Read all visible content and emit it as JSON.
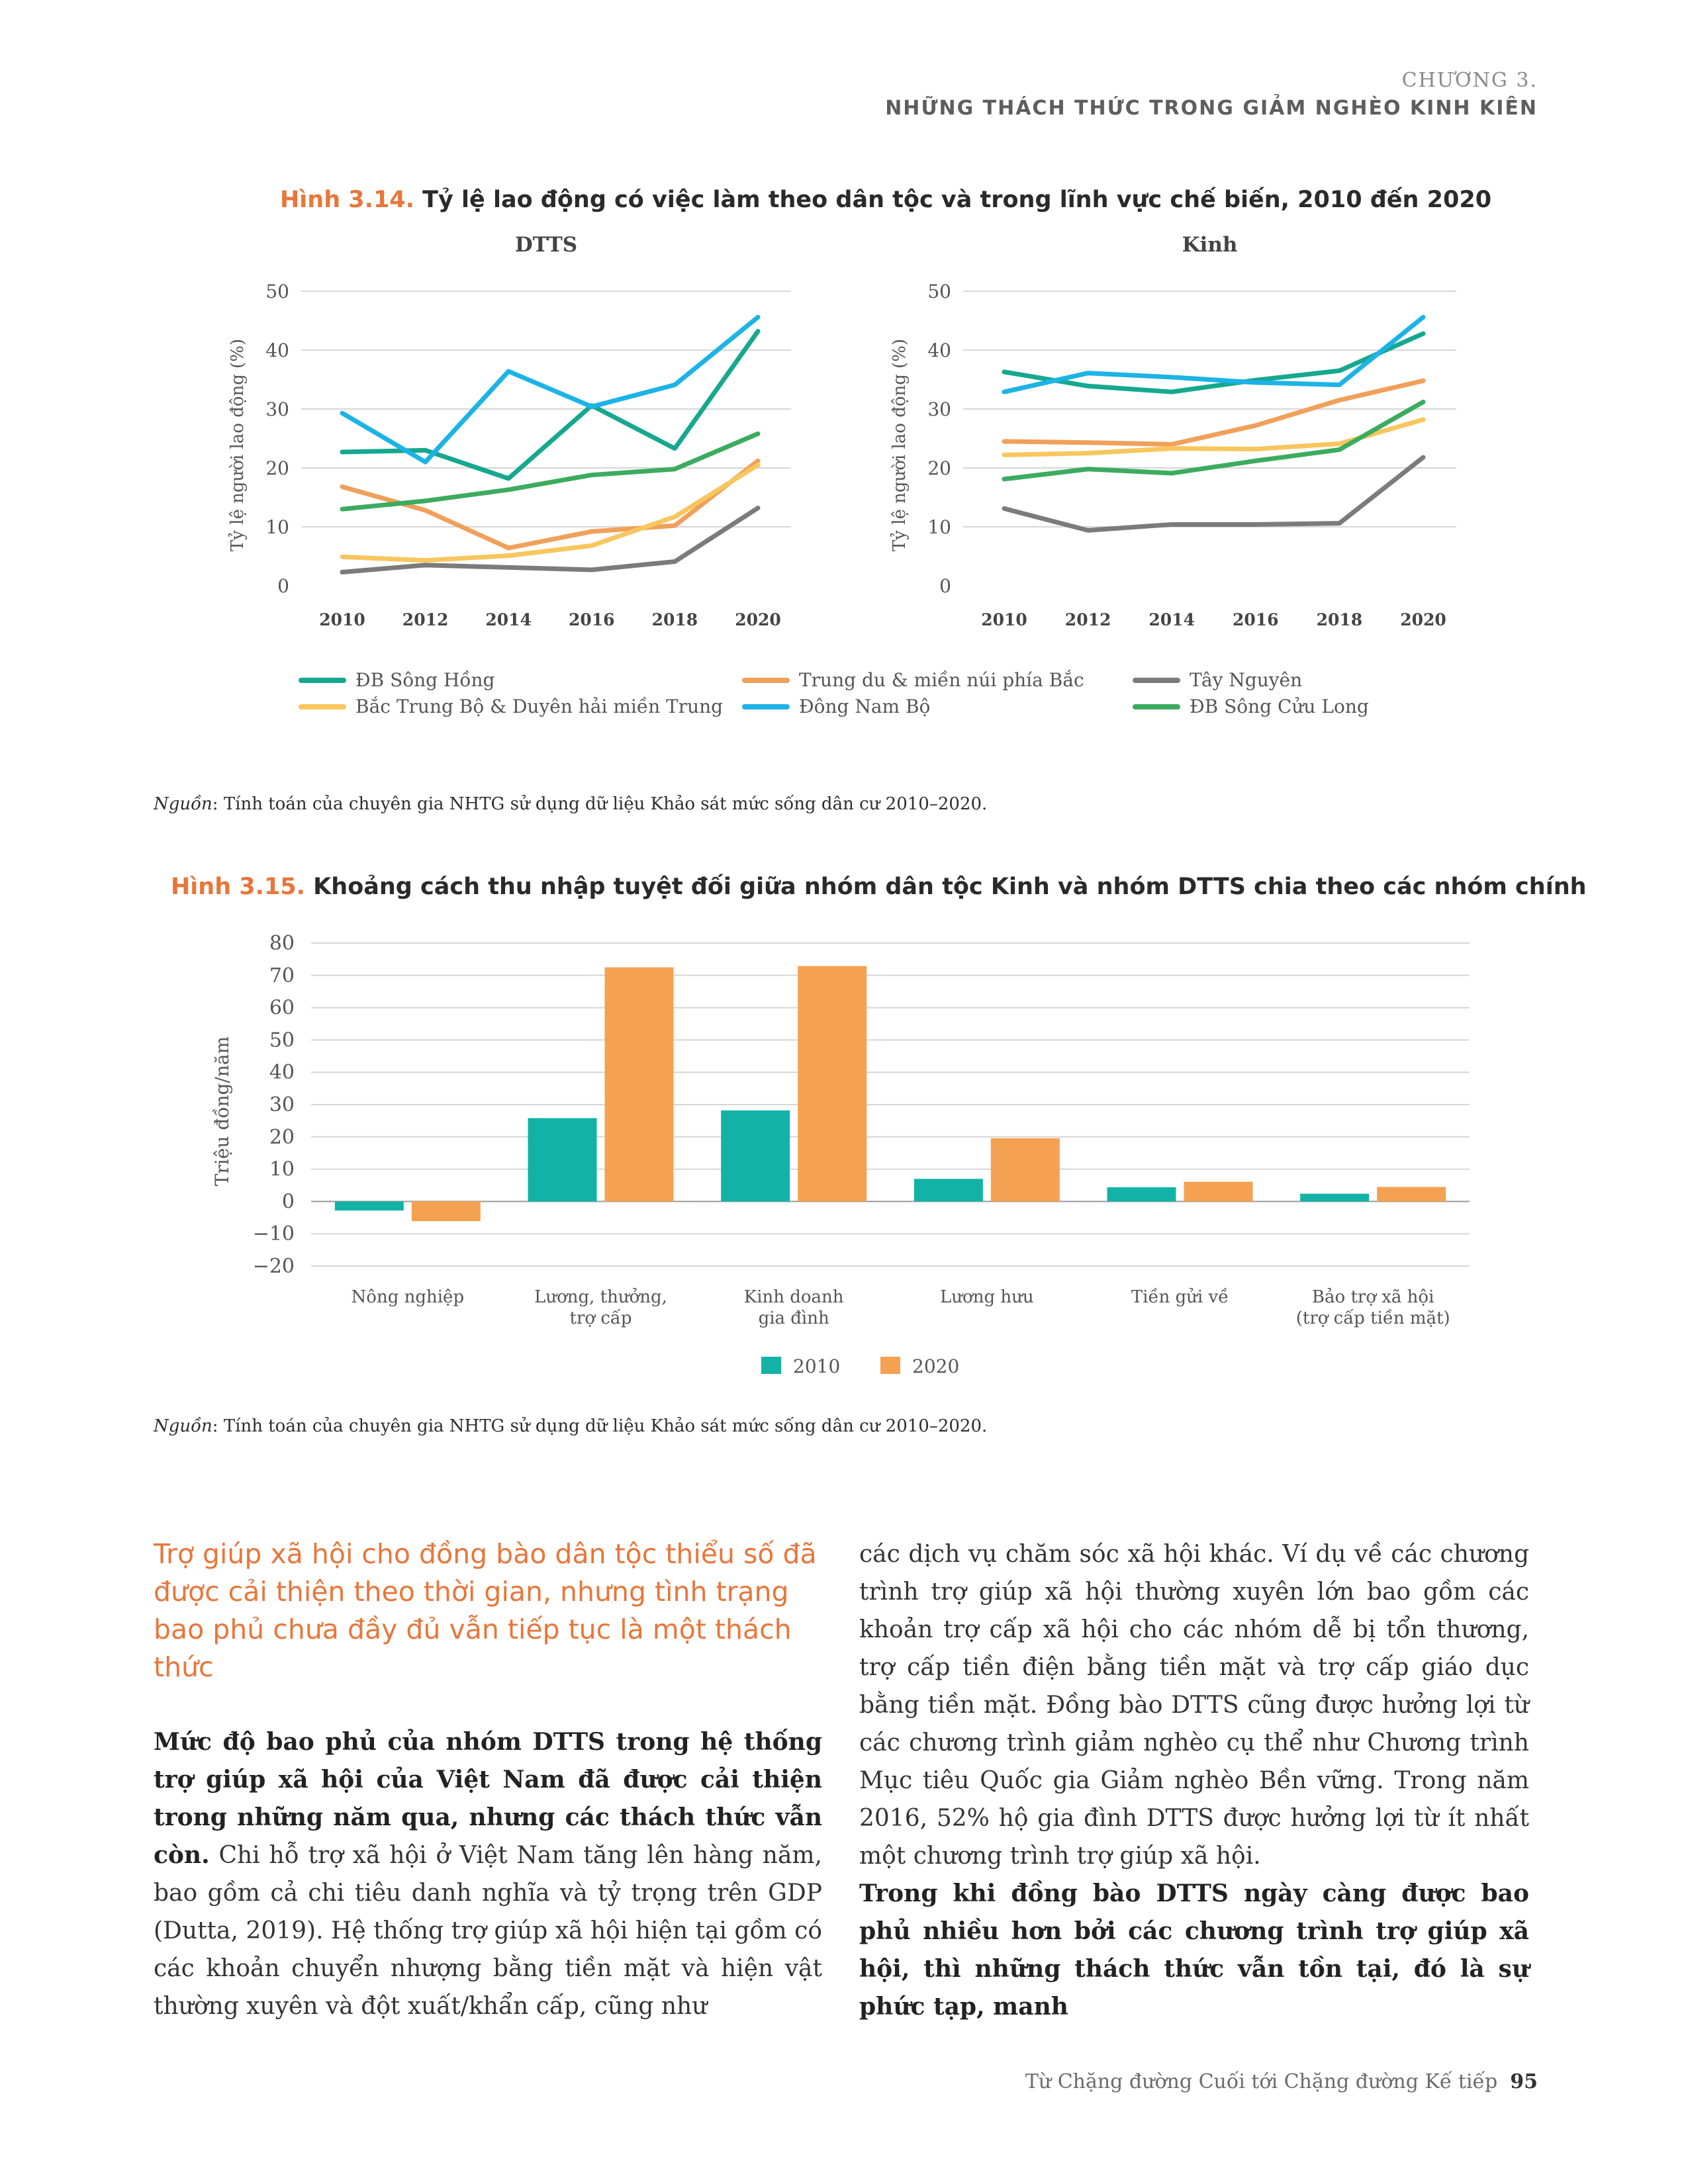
{
  "header": {
    "chapter": "CHƯƠNG 3.",
    "chapter_title": "NHỮNG THÁCH THỨC TRONG GIẢM NGHÈO KINH KIÊN"
  },
  "fig314": {
    "number": "Hình 3.14.",
    "title": "Tỷ lệ lao động có việc làm  theo dân tộc và trong lĩnh vực chế biến, 2010 đến 2020",
    "source_label": "Nguồn",
    "source": ": Tính toán của chuyên gia NHTG sử dụng dữ liệu Khảo sát mức sống dân cư 2010–2020."
  },
  "fig315": {
    "number": "Hình 3.15.",
    "title": "Khoảng cách thu nhập tuyệt đối giữa nhóm dân tộc Kinh và nhóm DTTS chia theo các nhóm chính",
    "source_label": "Nguồn",
    "source": ": Tính toán của chuyên gia NHTG sử dụng dữ liệu Khảo sát mức sống dân cư 2010–2020."
  },
  "chart_data": [
    {
      "type": "line",
      "title": "DTTS",
      "ylabel": "Tỷ lệ người lao động (%)",
      "x": [
        "2010",
        "2012",
        "2014",
        "2016",
        "2018",
        "2020"
      ],
      "ylim": [
        0,
        50
      ],
      "yticks": [
        "0",
        "10",
        "20",
        "30",
        "40",
        "50"
      ],
      "grid": true,
      "series": [
        {
          "name": "ĐB Sông Hồng",
          "color": "#16a88f",
          "values": [
            22.7,
            23,
            18.2,
            30.6,
            23.3,
            43.2
          ]
        },
        {
          "name": "Trung du & miền núi phía Bắc",
          "color": "#f0a05a",
          "values": [
            16.8,
            12.8,
            6.4,
            9.2,
            10.2,
            21.2
          ]
        },
        {
          "name": "Tây Nguyên",
          "color": "#7b7b7b",
          "values": [
            2.3,
            3.5,
            3.1,
            2.7,
            4.1,
            13.2
          ]
        },
        {
          "name": "Bắc Trung Bộ & Duyên hải miền Trung",
          "color": "#f8c65e",
          "values": [
            4.9,
            4.3,
            5.1,
            6.8,
            11.7,
            20.5
          ]
        },
        {
          "name": "Đông Nam Bộ",
          "color": "#1cb3e6",
          "values": [
            29.3,
            21.0,
            36.4,
            30.4,
            34.1,
            45.6
          ]
        },
        {
          "name": "ĐB Sông Cửu Long",
          "color": "#3cab5f",
          "values": [
            13.0,
            14.4,
            16.3,
            18.8,
            19.8,
            25.8
          ]
        }
      ]
    },
    {
      "type": "line",
      "title": "Kinh",
      "ylabel": "Tỷ lệ người lao động (%)",
      "x": [
        "2010",
        "2012",
        "2014",
        "2016",
        "2018",
        "2020"
      ],
      "ylim": [
        0,
        50
      ],
      "yticks": [
        "0",
        "10",
        "20",
        "30",
        "40",
        "50"
      ],
      "grid": true,
      "series": [
        {
          "name": "ĐB Sông Hồng",
          "color": "#16a88f",
          "values": [
            36.3,
            33.9,
            32.9,
            34.9,
            36.5,
            42.8
          ]
        },
        {
          "name": "Trung du & miền núi phía Bắc",
          "color": "#f0a05a",
          "values": [
            24.5,
            24.3,
            24.0,
            27.2,
            31.5,
            34.8
          ]
        },
        {
          "name": "Tây Nguyên",
          "color": "#7b7b7b",
          "values": [
            13.1,
            9.4,
            10.4,
            10.4,
            10.6,
            21.8
          ]
        },
        {
          "name": "Bắc Trung Bộ & Duyên hải miền Trung",
          "color": "#f8c65e",
          "values": [
            22.2,
            22.5,
            23.3,
            23.2,
            24.1,
            28.2
          ]
        },
        {
          "name": "Đông Nam Bộ",
          "color": "#1cb3e6",
          "values": [
            32.9,
            36.1,
            35.4,
            34.5,
            34.1,
            45.6
          ]
        },
        {
          "name": "ĐB Sông Cửu Long",
          "color": "#3cab5f",
          "values": [
            18.1,
            19.8,
            19.1,
            21.2,
            23.1,
            31.2
          ]
        }
      ]
    },
    {
      "type": "bar",
      "ylabel": "Triệu đồng/năm",
      "categories": [
        "Nông nghiệp",
        "Lương, thưởng, trợ cấp",
        "Kinh doanh gia đình",
        "Lương hưu",
        "Tiền gửi về",
        "Bảo trợ xã hội (trợ cấp tiền mặt)"
      ],
      "category_lines": [
        [
          "Nông nghiệp"
        ],
        [
          "Lương, thưởng,",
          "trợ cấp"
        ],
        [
          "Kinh doanh",
          "gia đình"
        ],
        [
          "Lương hưu"
        ],
        [
          "Tiền gửi về"
        ],
        [
          "Bảo trợ xã hội",
          "(trợ cấp tiền mặt)"
        ]
      ],
      "ylim": [
        -20,
        80
      ],
      "yticks": [
        "−20",
        "−10",
        "0",
        "10",
        "20",
        "30",
        "40",
        "50",
        "60",
        "70",
        "80"
      ],
      "grid": true,
      "legend": "bottom-center",
      "series": [
        {
          "name": "2010",
          "color": "#12b3a6",
          "values": [
            -2.8,
            25.8,
            28.2,
            7.0,
            4.4,
            2.4
          ]
        },
        {
          "name": "2020",
          "color": "#f4a251",
          "values": [
            -6.1,
            72.5,
            72.9,
            19.6,
            6.1,
            4.5
          ]
        }
      ]
    }
  ],
  "left_column": {
    "heading": "Trợ giúp xã hội cho đồng bào dân tộc thiểu số đã được cải thiện theo thời gian, nhưng tình trạng bao phủ chưa đầy đủ vẫn tiếp tục là một thách thức",
    "para_bold": "Mức độ bao phủ của nhóm DTTS trong hệ thống trợ giúp xã hội của Việt Nam đã được cải thiện trong những năm qua, nhưng các thách thức vẫn còn.",
    "para_rest": " Chi hỗ trợ xã hội ở Việt Nam tăng lên hàng năm, bao gồm cả chi tiêu danh nghĩa và tỷ trọng trên GDP (Dutta, 2019). Hệ thống trợ giúp xã hội hiện tại gồm có các khoản chuyển nhượng bằng tiền mặt và hiện vật thường xuyên và đột xuất/khẩn cấp, cũng như"
  },
  "right_column": {
    "para1": "các dịch vụ chăm sóc xã hội khác. Ví dụ về các chương trình trợ giúp xã hội thường xuyên lớn bao gồm các khoản trợ cấp xã hội cho các nhóm dễ bị tổn thương, trợ cấp tiền điện bằng tiền mặt và trợ cấp giáo dục bằng tiền mặt. Đồng bào DTTS cũng được hưởng lợi từ các chương trình giảm nghèo cụ thể như Chương trình Mục tiêu Quốc gia Giảm nghèo Bền vững. Trong năm 2016, 52% hộ gia đình DTTS được hưởng lợi từ ít nhất một chương trình trợ giúp xã hội.",
    "para2_bold": "Trong khi đồng bào DTTS ngày càng được bao phủ nhiều hơn bởi các chương trình trợ giúp xã hội, thì những thách thức vẫn tồn tại, đó là sự phức tạp, manh"
  },
  "footer": {
    "book_title": "Từ Chặng đường Cuối tới Chặng đường Kế tiếp",
    "page_number": "95"
  }
}
